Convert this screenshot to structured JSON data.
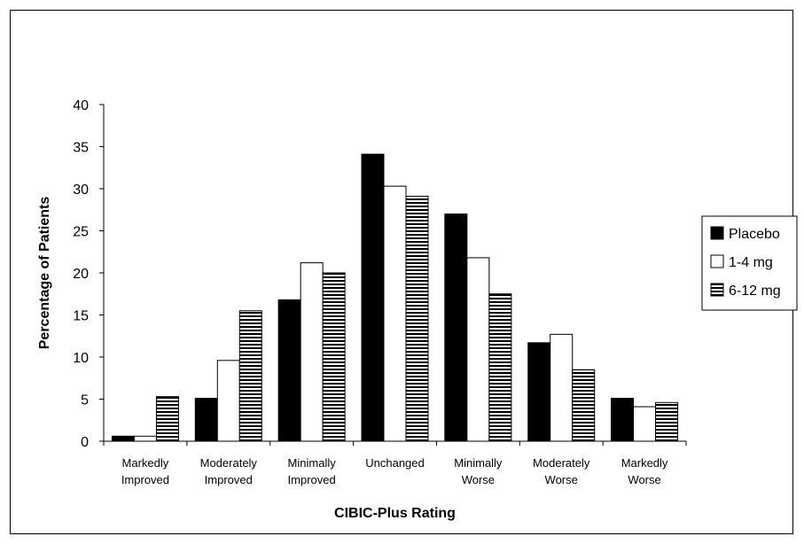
{
  "chart_data": {
    "type": "bar",
    "title": "",
    "xlabel": "CIBIC-Plus Rating",
    "ylabel": "Percentage of Patients",
    "ylim": [
      0,
      40
    ],
    "yticks": [
      "0",
      "5",
      "10",
      "15",
      "20",
      "25",
      "30",
      "35",
      "40"
    ],
    "categories": [
      [
        "Markedly",
        "Improved"
      ],
      [
        "Moderately",
        "Improved"
      ],
      [
        "Minimally",
        "Improved"
      ],
      [
        "Unchanged"
      ],
      [
        "Minimally",
        "Worse"
      ],
      [
        "Moderately",
        "Worse"
      ],
      [
        "Markedly",
        "Worse"
      ]
    ],
    "series": [
      {
        "name": "Placebo",
        "fill": "solid",
        "color": "#000000",
        "values": [
          0.6,
          5.1,
          16.8,
          34.1,
          27.0,
          11.7,
          5.1
        ]
      },
      {
        "name": "1-4 mg",
        "fill": "white",
        "color": "#ffffff",
        "values": [
          0.6,
          9.6,
          21.2,
          30.3,
          21.8,
          12.7,
          4.1
        ]
      },
      {
        "name": "6-12 mg",
        "fill": "horizontal-stripes",
        "color": "#000000",
        "values": [
          5.3,
          15.5,
          20.0,
          29.1,
          17.5,
          8.5,
          4.6
        ]
      }
    ],
    "legend_position": "right",
    "grid": false
  }
}
